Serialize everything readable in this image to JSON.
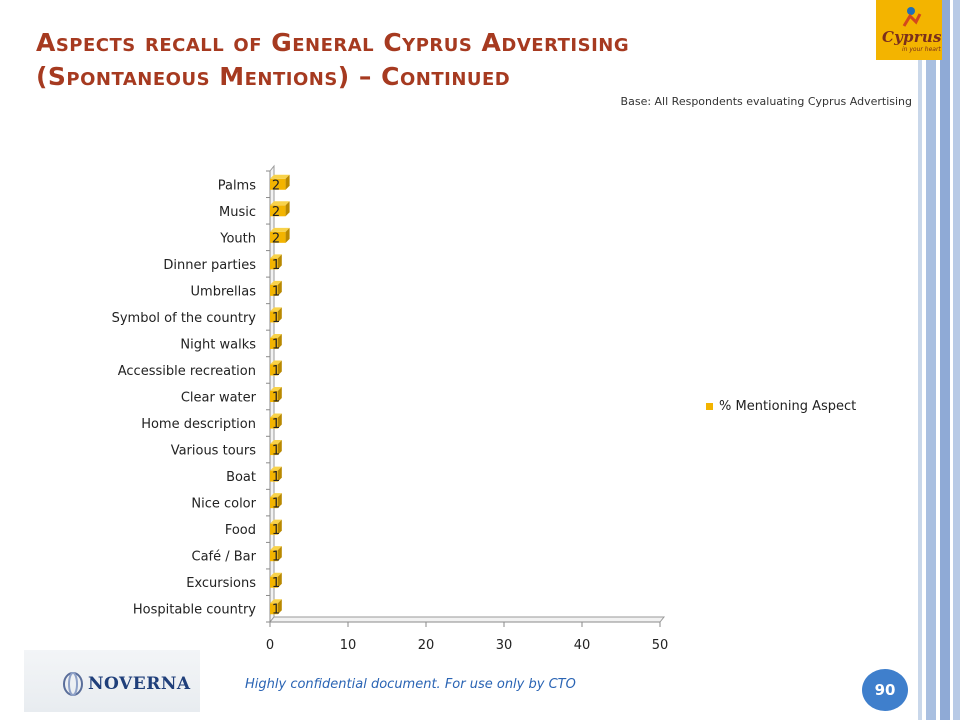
{
  "slide": {
    "title_line1": "Aspects recall of General Cyprus Advertising",
    "title_line2": "(Spontaneous Mentions) – Continued",
    "base_note": "Base: All Respondents evaluating Cyprus Advertising",
    "logo_text": "Cyprus",
    "logo_sub": "in your heart",
    "footer_logo_text": "NOVERNA",
    "confidential": "Highly confidential document. For use only by CTO",
    "page_number": "90"
  },
  "colors": {
    "title": "#a63a20",
    "bar": "#f3b400",
    "bar_dark": "#b98900",
    "accent": "#3f7fcc"
  },
  "chart_data": {
    "type": "bar",
    "orientation": "horizontal",
    "categories": [
      "Palms",
      "Music",
      "Youth",
      "Dinner parties",
      "Umbrellas",
      "Symbol of the country",
      "Night walks",
      "Accessible recreation",
      "Clear water",
      "Home description",
      "Various tours",
      "Boat",
      "Nice color",
      "Food",
      "Café / Bar",
      "Excursions",
      "Hospitable country"
    ],
    "series": [
      {
        "name": "% Mentioning Aspect",
        "values": [
          2,
          2,
          2,
          1,
          1,
          1,
          1,
          1,
          1,
          1,
          1,
          1,
          1,
          1,
          1,
          1,
          1
        ]
      }
    ],
    "data_labels": [
      "2",
      "2",
      "2",
      "1",
      "1",
      "1",
      "1",
      "1",
      "1",
      "1",
      "1",
      "1",
      "1",
      "1",
      "1",
      "1",
      "1"
    ],
    "xlim": [
      0,
      50
    ],
    "x_ticks": [
      "0",
      "10",
      "20",
      "30",
      "40",
      "50"
    ],
    "legend_position": "right",
    "grid": false
  }
}
